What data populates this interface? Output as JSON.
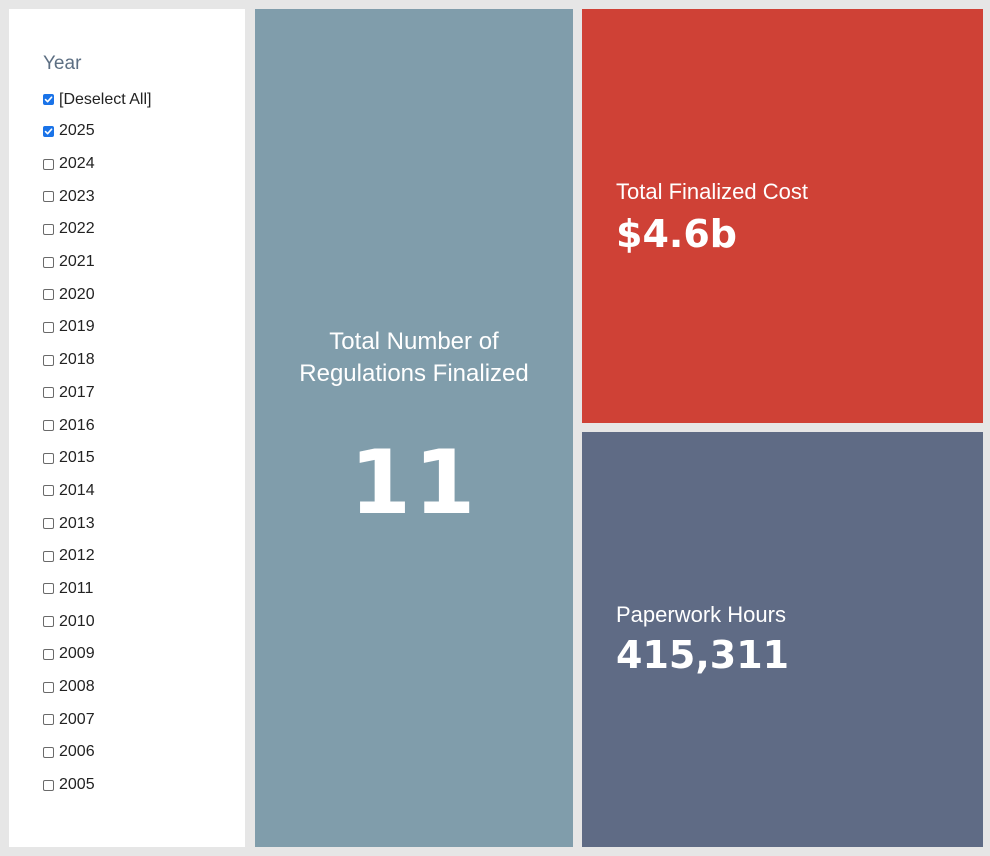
{
  "filter": {
    "title": "Year",
    "items": [
      {
        "label": "[Deselect All]",
        "checked": true
      },
      {
        "label": "2025",
        "checked": true
      },
      {
        "label": "2024",
        "checked": false
      },
      {
        "label": "2023",
        "checked": false
      },
      {
        "label": "2022",
        "checked": false
      },
      {
        "label": "2021",
        "checked": false
      },
      {
        "label": "2020",
        "checked": false
      },
      {
        "label": "2019",
        "checked": false
      },
      {
        "label": "2018",
        "checked": false
      },
      {
        "label": "2017",
        "checked": false
      },
      {
        "label": "2016",
        "checked": false
      },
      {
        "label": "2015",
        "checked": false
      },
      {
        "label": "2014",
        "checked": false
      },
      {
        "label": "2013",
        "checked": false
      },
      {
        "label": "2012",
        "checked": false
      },
      {
        "label": "2011",
        "checked": false
      },
      {
        "label": "2010",
        "checked": false
      },
      {
        "label": "2009",
        "checked": false
      },
      {
        "label": "2008",
        "checked": false
      },
      {
        "label": "2007",
        "checked": false
      },
      {
        "label": "2006",
        "checked": false
      },
      {
        "label": "2005",
        "checked": false
      }
    ]
  },
  "kpis": {
    "regulations": {
      "label": "Total Number of Regulations Finalized",
      "value": "11",
      "color": "#809dab"
    },
    "cost": {
      "label": "Total Finalized Cost",
      "value": "$4.6b",
      "color": "#cf4136"
    },
    "paperwork": {
      "label": "Paperwork Hours",
      "value": "415,311",
      "color": "#5f6b85"
    }
  },
  "colors": {
    "background": "#e6e6e6",
    "checkbox_accent": "#1a73e8",
    "filter_title": "#5d6f83"
  }
}
